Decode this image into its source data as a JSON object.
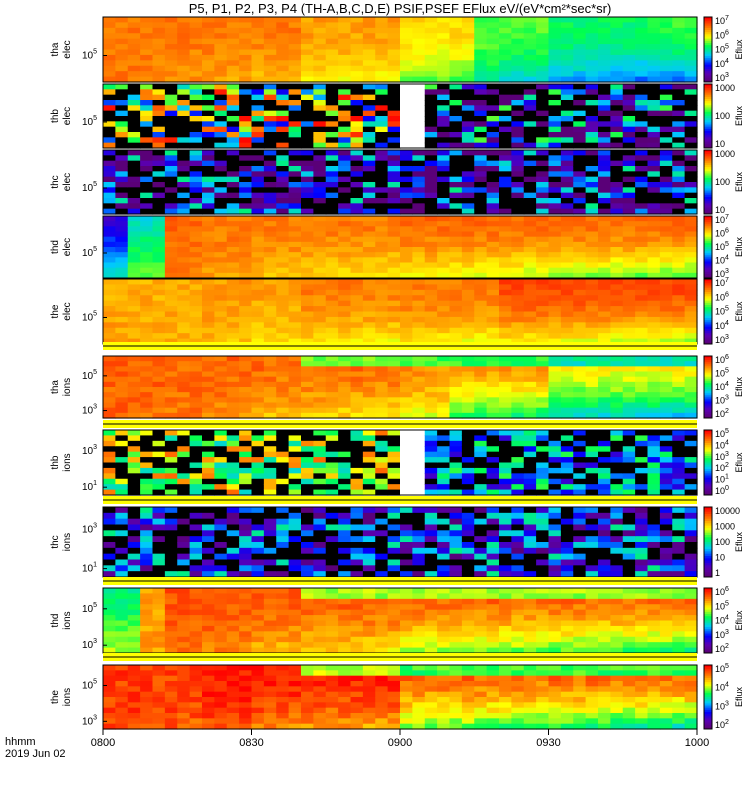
{
  "title": "P5, P1, P2, P3, P4 (TH-A,B,C,D,E) PSIF,PSEF EFlux eV/(eV*cm²*sec*sr)",
  "chart_data": {
    "type": "heatmap",
    "time_range": [
      "2019-06-02 08:00",
      "2019-06-02 10:00"
    ],
    "x_ticks": [
      "0800",
      "0830",
      "0900",
      "0930",
      "1000"
    ],
    "x_tick_values_min": [
      0,
      30,
      60,
      90,
      120
    ],
    "x_label_line1": "hhmm",
    "x_label_line2": "2019 Jun 02",
    "grid": false,
    "colormap": "rainbow: purple-blue-cyan-green-yellow-red",
    "panels": [
      {
        "label": [
          "thb",
          "elec"
        ],
        "dummy": true
      }
    ]
  }
}
